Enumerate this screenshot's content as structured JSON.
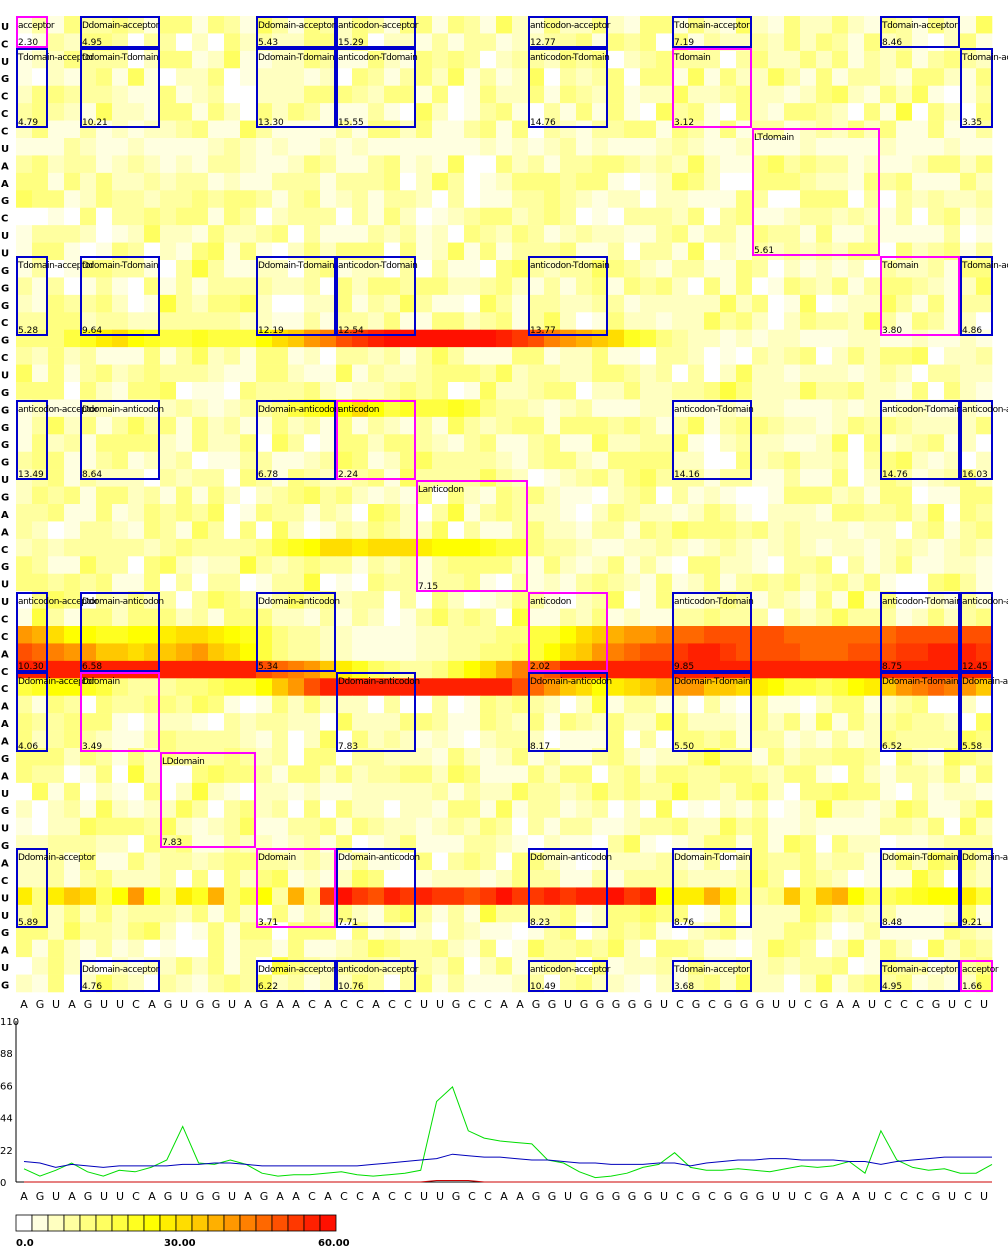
{
  "chart_data": {
    "type": "heatmap",
    "row_sequence": "UCUGCCCUAAGCUUGGGCGCUGGGGGUGAACGUUCCACCAAAGAUGUGACUUGAUG",
    "column_sequence": "AGUAGUUCAGUGGUAGAACACCACCUUGCCAAGGUGGGGGUCGCGGGUUCGAAUCCCGUCU",
    "color_scale": {
      "min": 0,
      "max": 60,
      "tick_labels": [
        "0.0",
        "30.00",
        "60.00"
      ],
      "colors": [
        "#ffffff",
        "#ffffe0",
        "#ffffc0",
        "#ffffa0",
        "#ffff80",
        "#ffff60",
        "#ffff40",
        "#ffff20",
        "#ffff00",
        "#ffee00",
        "#ffdd00",
        "#ffc800",
        "#ffb000",
        "#ff9800",
        "#ff8000",
        "#ff6800",
        "#ff5000",
        "#ff3800",
        "#ff2000",
        "#ff1000"
      ]
    },
    "row_band_scores": [
      {
        "row": "U",
        "values": [
          2,
          3,
          2,
          8,
          6,
          2,
          4,
          6,
          3,
          2,
          4,
          4,
          5,
          8,
          6,
          2,
          6,
          4,
          3,
          5,
          4,
          6,
          2,
          4,
          3,
          2,
          4,
          3,
          4,
          6,
          3,
          5,
          4,
          6,
          8,
          4,
          6,
          4,
          3,
          2,
          5,
          8,
          6,
          4,
          3,
          6,
          4,
          3,
          2,
          5,
          4,
          2,
          3,
          4,
          6,
          3,
          4,
          2,
          5,
          4,
          3
        ]
      },
      {
        "row": "U",
        "values": [
          12,
          14,
          13,
          18,
          22,
          28,
          30,
          25,
          22,
          20,
          18,
          22,
          20,
          20,
          18,
          26,
          30,
          35,
          40,
          44,
          50,
          55,
          58,
          60,
          60,
          60,
          60,
          60,
          60,
          60,
          58,
          55,
          50,
          45,
          40,
          38,
          35,
          30,
          22,
          18,
          12,
          8,
          6,
          5,
          4,
          5,
          4,
          6,
          5,
          4,
          3,
          4,
          6,
          5,
          4,
          3,
          5,
          4,
          3,
          6,
          4
        ]
      },
      {
        "row": "A",
        "values": [
          4,
          6,
          4,
          3,
          5,
          6,
          3,
          4,
          2,
          5,
          8,
          6,
          4,
          6,
          8,
          10,
          14,
          18,
          22,
          26,
          24,
          30,
          26,
          18,
          22,
          20,
          18,
          22,
          20,
          14,
          10,
          8,
          6,
          4,
          6,
          8,
          4,
          3,
          4,
          6,
          5,
          4,
          3,
          4,
          6,
          4,
          6,
          5,
          4,
          3,
          4,
          6,
          3,
          5,
          4,
          6,
          5,
          4,
          3,
          5,
          4
        ]
      },
      {
        "row": "U",
        "values": [
          6,
          8,
          6,
          8,
          10,
          8,
          10,
          8,
          6,
          8,
          12,
          10,
          8,
          10,
          8,
          14,
          18,
          22,
          26,
          30,
          30,
          28,
          30,
          32,
          30,
          28,
          26,
          26,
          24,
          22,
          20,
          18,
          14,
          10,
          8,
          6,
          4,
          4,
          6,
          5,
          8,
          6,
          4,
          6,
          8,
          6,
          4,
          6,
          8,
          6,
          4,
          6,
          5,
          4,
          6,
          8,
          6,
          4,
          6,
          8,
          6
        ]
      },
      {
        "row": "A",
        "values": [
          40,
          38,
          30,
          26,
          24,
          22,
          22,
          24,
          26,
          28,
          30,
          32,
          28,
          26,
          22,
          18,
          14,
          10,
          8,
          6,
          6,
          4,
          4,
          4,
          4,
          6,
          6,
          8,
          10,
          10,
          12,
          14,
          18,
          20,
          24,
          30,
          34,
          38,
          40,
          42,
          44,
          46,
          48,
          50,
          50,
          52,
          52,
          50,
          48,
          48,
          46,
          46,
          46,
          48,
          48,
          50,
          50,
          52,
          52,
          52,
          50
        ]
      },
      {
        "row": "C",
        "values": [
          50,
          48,
          44,
          42,
          40,
          36,
          34,
          32,
          34,
          36,
          38,
          40,
          36,
          32,
          26,
          20,
          14,
          10,
          8,
          6,
          6,
          4,
          4,
          4,
          4,
          6,
          6,
          8,
          10,
          12,
          14,
          16,
          20,
          24,
          30,
          36,
          40,
          44,
          48,
          50,
          52,
          54,
          56,
          56,
          54,
          52,
          52,
          50,
          50,
          48,
          48,
          48,
          50,
          50,
          52,
          54,
          54,
          56,
          56,
          56,
          54
        ]
      },
      {
        "row": "U",
        "values": [
          58,
          58,
          58,
          58,
          58,
          58,
          58,
          58,
          58,
          58,
          58,
          58,
          58,
          58,
          56,
          52,
          48,
          44,
          40,
          34,
          28,
          22,
          16,
          12,
          10,
          10,
          14,
          20,
          26,
          32,
          38,
          44,
          48,
          52,
          56,
          58,
          58,
          58,
          58,
          58,
          58,
          58,
          58,
          58,
          58,
          58,
          58,
          58,
          58,
          58,
          58,
          58,
          58,
          58,
          58,
          58,
          58,
          58,
          58,
          58,
          58
        ]
      },
      {
        "row": "U",
        "values": [
          20,
          22,
          24,
          26,
          22,
          18,
          14,
          10,
          8,
          10,
          12,
          14,
          16,
          18,
          20,
          26,
          34,
          42,
          50,
          56,
          58,
          58,
          58,
          58,
          58,
          58,
          58,
          58,
          58,
          58,
          56,
          52,
          46,
          40,
          34,
          30,
          26,
          28,
          32,
          36,
          38,
          42,
          40,
          36,
          34,
          30,
          28,
          24,
          20,
          18,
          16,
          20,
          24,
          28,
          34,
          40,
          44,
          46,
          44,
          40,
          36
        ]
      }
    ]
  },
  "heatmap": {
    "boxes": [
      {
        "label": "acceptor",
        "value": "2.30",
        "self": true
      },
      {
        "label": "Ddomain-acceptor",
        "value": "4.95",
        "self": false
      },
      {
        "label": "Ddomain-acceptor",
        "value": "5.43",
        "self": false
      },
      {
        "label": "anticodon-acceptor",
        "value": "15.29",
        "self": false
      },
      {
        "label": "anticodon-acceptor",
        "value": "12.77",
        "self": false
      },
      {
        "label": "Tdomain-acceptor",
        "value": "7.19",
        "self": false
      },
      {
        "label": "Tdomain-acceptor",
        "value": "8.46",
        "self": false
      },
      {
        "label": "Tdomain-acceptor",
        "value": "4.79",
        "self": false
      },
      {
        "label": "Ddomain-Tdomain",
        "value": "10.21",
        "self": false
      },
      {
        "label": "Ddomain-Tdomain",
        "value": "13.30",
        "self": false
      },
      {
        "label": "anticodon-Tdomain",
        "value": "15.55",
        "self": false
      },
      {
        "label": "anticodon-Tdomain",
        "value": "14.76",
        "self": false
      },
      {
        "label": "Tdomain",
        "value": "3.12",
        "self": true
      },
      {
        "label": "Tdomain-acceptor",
        "value": "3.35",
        "self": false
      },
      {
        "label": "LTdomain",
        "value": "5.61",
        "self": true
      },
      {
        "label": "Tdomain-acceptor",
        "value": "5.28",
        "self": false
      },
      {
        "label": "Ddomain-Tdomain",
        "value": "9.64",
        "self": false
      },
      {
        "label": "Ddomain-Tdomain",
        "value": "12.19",
        "self": false
      },
      {
        "label": "anticodon-Tdomain",
        "value": "12.54",
        "self": false
      },
      {
        "label": "anticodon-Tdomain",
        "value": "13.77",
        "self": false
      },
      {
        "label": "Tdomain",
        "value": "3.80",
        "self": true
      },
      {
        "label": "Tdomain-acceptor",
        "value": "4.86",
        "self": false
      },
      {
        "label": "anticodon-acceptor",
        "value": "13.49",
        "self": false
      },
      {
        "label": "Ddomain-anticodon",
        "value": "8.64",
        "self": false
      },
      {
        "label": "Ddomain-anticodon",
        "value": "6.78",
        "self": false
      },
      {
        "label": "anticodon",
        "value": "2.24",
        "self": true
      },
      {
        "label": "anticodon-Tdomain",
        "value": "14.16",
        "self": false
      },
      {
        "label": "anticodon-Tdomain",
        "value": "14.76",
        "self": false
      },
      {
        "label": "anticodon-acceptor",
        "value": "16.03",
        "self": false
      },
      {
        "label": "Lanticodon",
        "value": "7.15",
        "self": true
      },
      {
        "label": "anticodon-acceptor",
        "value": "10.30",
        "self": false
      },
      {
        "label": "Ddomain-anticodon",
        "value": "6.58",
        "self": false
      },
      {
        "label": "Ddomain-anticodon",
        "value": "5.34",
        "self": false
      },
      {
        "label": "anticodon",
        "value": "2.02",
        "self": true
      },
      {
        "label": "anticodon-Tdomain",
        "value": "9.85",
        "self": false
      },
      {
        "label": "anticodon-Tdomain",
        "value": "8.75",
        "self": false
      },
      {
        "label": "anticodon-acceptor",
        "value": "12.45",
        "self": false
      },
      {
        "label": "Ddomain-acceptor",
        "value": "4.06",
        "self": false
      },
      {
        "label": "Ddomain",
        "value": "3.49",
        "self": true
      },
      {
        "label": "Ddomain-anticodon",
        "value": "7.83",
        "self": false
      },
      {
        "label": "Ddomain-anticodon",
        "value": "8.17",
        "self": false
      },
      {
        "label": "Ddomain-Tdomain",
        "value": "5.50",
        "self": false
      },
      {
        "label": "Ddomain-Tdomain",
        "value": "6.52",
        "self": false
      },
      {
        "label": "Ddomain-acceptor",
        "value": "5.58",
        "self": false
      },
      {
        "label": "LDdomain",
        "value": "7.83",
        "self": true
      },
      {
        "label": "Ddomain-acceptor",
        "value": "5.89",
        "self": false
      },
      {
        "label": "Ddomain",
        "value": "3.71",
        "self": true
      },
      {
        "label": "Ddomain-anticodon",
        "value": "7.71",
        "self": false
      },
      {
        "label": "Ddomain-anticodon",
        "value": "8.23",
        "self": false
      },
      {
        "label": "Ddomain-Tdomain",
        "value": "8.76",
        "self": false
      },
      {
        "label": "Ddomain-Tdomain",
        "value": "8.48",
        "self": false
      },
      {
        "label": "Ddomain-acceptor",
        "value": "9.21",
        "self": false
      },
      {
        "label": "Ddomain-acceptor",
        "value": "4.76",
        "self": false
      },
      {
        "label": "Ddomain-acceptor",
        "value": "6.22",
        "self": false
      },
      {
        "label": "anticodon-acceptor",
        "value": "10.76",
        "self": false
      },
      {
        "label": "anticodon-acceptor",
        "value": "10.49",
        "self": false
      },
      {
        "label": "Tdomain-acceptor",
        "value": "3.68",
        "self": false
      },
      {
        "label": "Tdomain-acceptor",
        "value": "4.95",
        "self": false
      },
      {
        "label": "acceptor",
        "value": "1.66",
        "self": true
      }
    ],
    "box_colors": {
      "self": "#ff00ff",
      "pair": "#0000cc"
    }
  },
  "line_chart": {
    "type": "line",
    "y_ticks": [
      "110",
      "88",
      "66",
      "44",
      "22",
      "0"
    ],
    "ylim": [
      0,
      110
    ],
    "series": [
      {
        "color": "#00dd00",
        "values": [
          9,
          4,
          8,
          13,
          7,
          4,
          8,
          7,
          10,
          15,
          38,
          13,
          12,
          15,
          12,
          6,
          4,
          5,
          5,
          6,
          7,
          5,
          4,
          5,
          6,
          8,
          55,
          65,
          35,
          30,
          28,
          27,
          26,
          15,
          13,
          7,
          3,
          4,
          6,
          10,
          12,
          20,
          10,
          8,
          8,
          9,
          8,
          7,
          9,
          11,
          10,
          11,
          14,
          6,
          35,
          15,
          10,
          8,
          9,
          6,
          6,
          12
        ]
      },
      {
        "color": "#0000bb",
        "values": [
          14,
          13,
          10,
          12,
          11,
          10,
          11,
          11,
          11,
          11,
          12,
          12,
          13,
          13,
          12,
          11,
          11,
          11,
          11,
          11,
          11,
          11,
          12,
          13,
          14,
          15,
          16,
          19,
          18,
          17,
          17,
          16,
          15,
          15,
          14,
          13,
          13,
          12,
          12,
          12,
          13,
          13,
          11,
          13,
          14,
          15,
          15,
          16,
          16,
          15,
          15,
          15,
          14,
          14,
          12,
          14,
          15,
          16,
          17,
          17,
          17,
          17
        ]
      },
      {
        "color": "#cc0000",
        "values": [
          0,
          0,
          0,
          0,
          0,
          0,
          0,
          0,
          0,
          0,
          0,
          0,
          0,
          0,
          0,
          0,
          0,
          0,
          0,
          0,
          0,
          0,
          0,
          0,
          0,
          0,
          1,
          1,
          1,
          0,
          0,
          0,
          0,
          0,
          0,
          0,
          0,
          0,
          0,
          0,
          0,
          0,
          0,
          0,
          0,
          0,
          0,
          0,
          0,
          0,
          0,
          0,
          0,
          0,
          0,
          0,
          0,
          0,
          0,
          0,
          0,
          0
        ]
      }
    ]
  }
}
